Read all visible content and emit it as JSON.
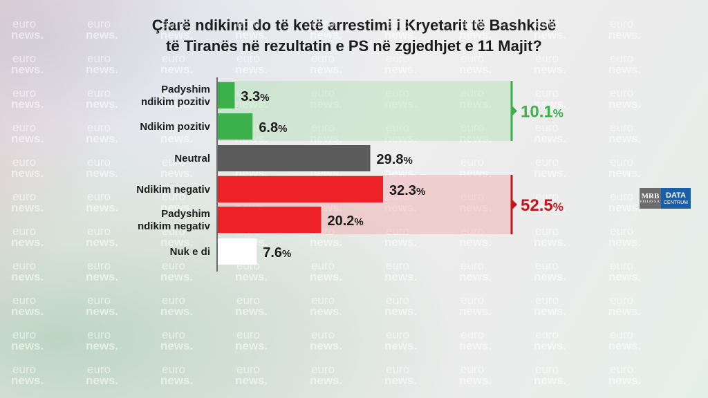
{
  "title_line1": "Çfarë ndikimi do të ketë arrestimi i Kryetarit të Bashkisë",
  "title_line2": "të Tiranës në rezultatin e PS në zgjedhjet e 11 Majit?",
  "watermark": {
    "line1": "euro",
    "line2": "news."
  },
  "logo": {
    "mrb": "MRB",
    "mrb_sub": "HELLAS S.A.",
    "data": "DATA",
    "centrum": "CENTRUM"
  },
  "chart_data": {
    "type": "bar",
    "orientation": "horizontal",
    "categories": [
      [
        "Padyshim",
        "ndikim pozitiv"
      ],
      [
        "Ndikim pozitiv"
      ],
      [
        "Neutral"
      ],
      [
        "Ndikim negativ"
      ],
      [
        "Padyshim",
        "ndikim negativ"
      ],
      [
        "Nuk e di"
      ]
    ],
    "values": [
      3.3,
      6.8,
      29.8,
      32.3,
      20.2,
      7.6
    ],
    "value_labels": [
      "3.3",
      "6.8",
      "29.8",
      "32.3",
      "20.2",
      "7.6"
    ],
    "unit": "%",
    "bar_colors": [
      "#3cb04b",
      "#3cb04b",
      "#5b5b5b",
      "#ec2226",
      "#ec2226",
      "#ffffff"
    ],
    "groups": [
      {
        "label": "10.1",
        "unit": "%",
        "from": 0,
        "to": 1,
        "color": "#3cb04b",
        "fill": "rgba(160,220,160,0.35)"
      },
      {
        "label": "52.5",
        "unit": "%",
        "from": 3,
        "to": 4,
        "color": "#c3161c",
        "fill": "rgba(240,150,150,0.35)"
      }
    ]
  }
}
